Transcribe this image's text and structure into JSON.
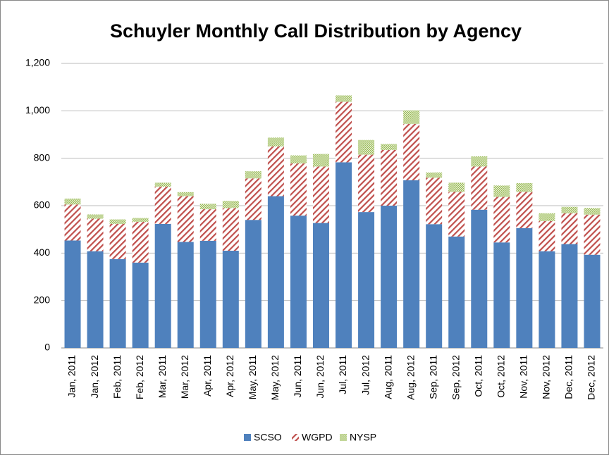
{
  "chart_data": {
    "type": "stacked_bar",
    "title": "Schuyler Monthly Call Distribution by Agency",
    "categories": [
      "Jan, 2011",
      "Jan, 2012",
      "Feb, 2011",
      "Feb, 2012",
      "Mar, 2011",
      "Mar, 2012",
      "Apr, 2011",
      "Apr, 2012",
      "May, 2011",
      "May, 2012",
      "Jun, 2011",
      "Jun, 2012",
      "Jul, 2011",
      "Jul, 2012",
      "Aug, 2011",
      "Aug, 2012",
      "Sep, 2011",
      "Sep, 2012",
      "Oct, 2011",
      "Oct, 2012",
      "Nov, 2011",
      "Nov, 2012",
      "Dec, 2011",
      "Dec, 2012"
    ],
    "series": [
      {
        "name": "SCSO",
        "color": "#4f81bd",
        "fill": "solid",
        "values": [
          453,
          408,
          375,
          360,
          523,
          447,
          452,
          410,
          540,
          640,
          558,
          527,
          783,
          573,
          600,
          707,
          522,
          470,
          583,
          445,
          505,
          408,
          438,
          393
        ]
      },
      {
        "name": "WGPD",
        "color": "#c0504d",
        "fill": "hatch",
        "values": [
          152,
          137,
          148,
          172,
          157,
          193,
          133,
          180,
          175,
          210,
          220,
          238,
          255,
          242,
          235,
          238,
          196,
          188,
          182,
          192,
          153,
          127,
          130,
          169
        ]
      },
      {
        "name": "NYSP",
        "color": "#9bbb59",
        "fill": "dots",
        "values": [
          25,
          18,
          19,
          16,
          17,
          17,
          23,
          30,
          30,
          37,
          34,
          53,
          27,
          62,
          25,
          57,
          22,
          39,
          43,
          48,
          37,
          33,
          27,
          28
        ]
      }
    ],
    "ylim": [
      0,
      1200
    ],
    "yticks": [
      0,
      200,
      400,
      600,
      800,
      {
        "value": 1000,
        "label": "1,000"
      },
      {
        "value": 1200,
        "label": "1,200"
      }
    ],
    "grid": true,
    "legend": "bottom"
  }
}
